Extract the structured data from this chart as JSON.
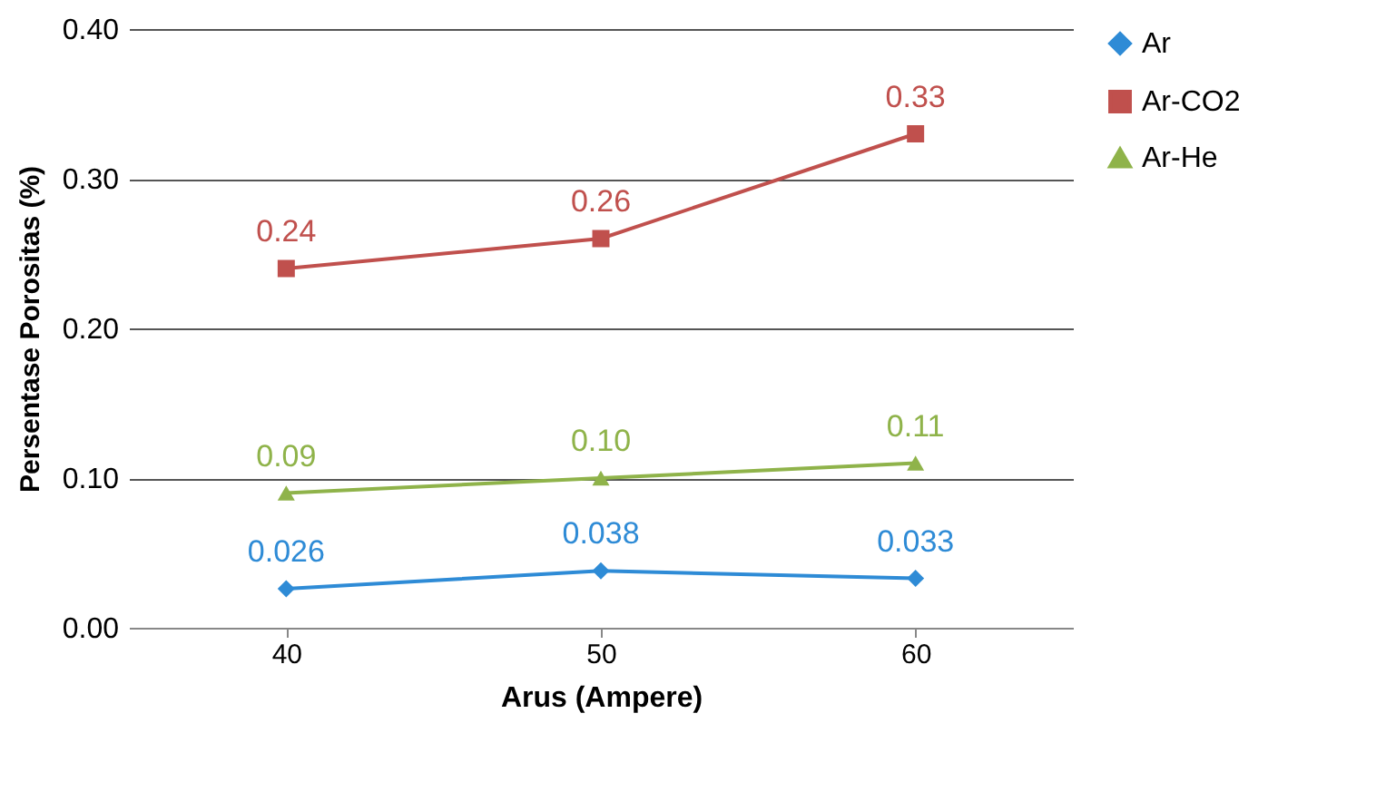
{
  "chart_data": {
    "type": "line",
    "xlabel": "Arus (Ampere)",
    "ylabel": "Persentase Porositas (%)",
    "categories": [
      "40",
      "50",
      "60"
    ],
    "series": [
      {
        "name": "Ar",
        "color": "#2e8bd6",
        "marker": "diamond",
        "values": [
          0.026,
          0.038,
          0.033
        ]
      },
      {
        "name": "Ar-CO2",
        "color": "#c0504d",
        "marker": "square",
        "values": [
          0.24,
          0.26,
          0.33
        ]
      },
      {
        "name": "Ar-He",
        "color": "#8fb34a",
        "marker": "triangle",
        "values": [
          0.09,
          0.1,
          0.11
        ],
        "value_labels": [
          "0.09",
          "0.10",
          "0.11"
        ]
      }
    ],
    "ylim": [
      0,
      0.4
    ],
    "yticks": [
      {
        "value": 0,
        "label": "0.00"
      },
      {
        "value": 0.1,
        "label": "0.10"
      },
      {
        "value": 0.2,
        "label": "0.20"
      },
      {
        "value": 0.3,
        "label": "0.30"
      },
      {
        "value": 0.4,
        "label": "0.40"
      }
    ],
    "grid": "y",
    "legend": "right",
    "data_labels": true
  }
}
